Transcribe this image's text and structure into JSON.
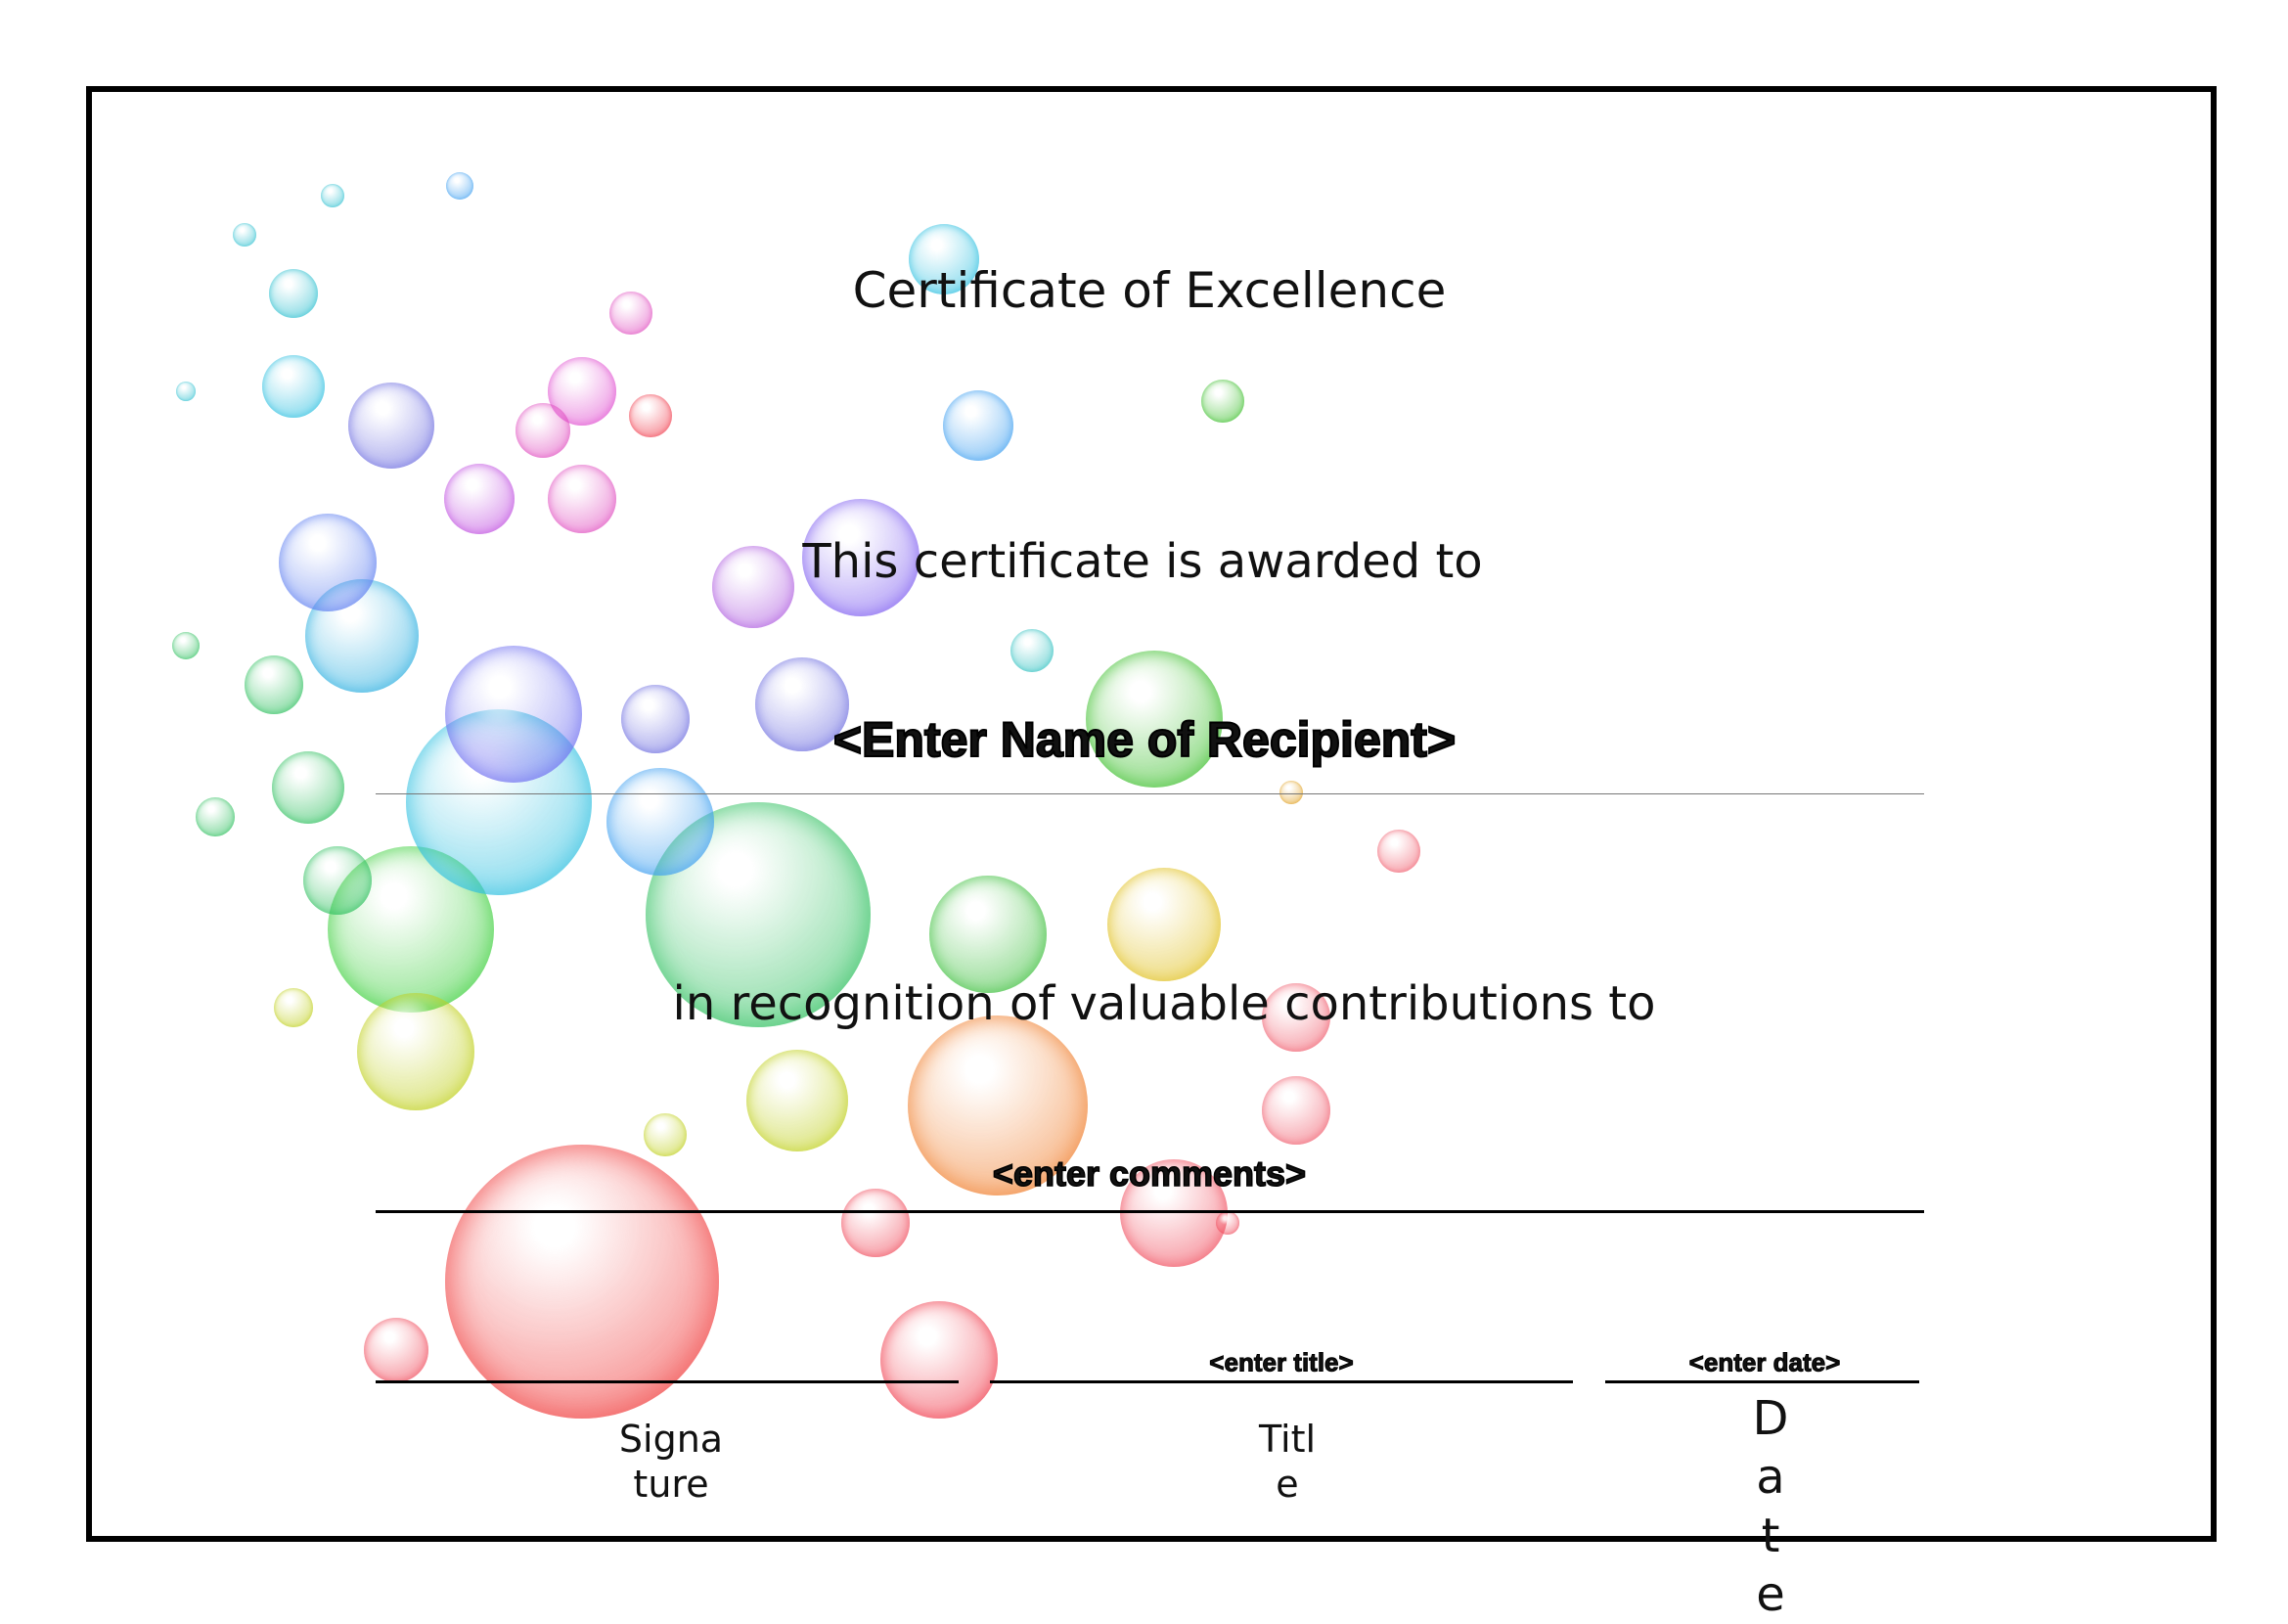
{
  "certificate": {
    "title": "Certificate of Excellence",
    "awarded_text": "This certificate is awarded to",
    "recipient_placeholder": "<Enter Name of Recipient>",
    "recognition_text": "in recognition of valuable contributions to",
    "comments_placeholder": "<enter comments>",
    "title_placeholder": "<enter title>",
    "date_placeholder": "<enter date>",
    "signature_label": "Signature",
    "title_label": "Title",
    "date_label": "Date"
  },
  "colors": {
    "border": "#000000",
    "background": "#ffffff"
  },
  "decoration": "colorful-bubbles"
}
